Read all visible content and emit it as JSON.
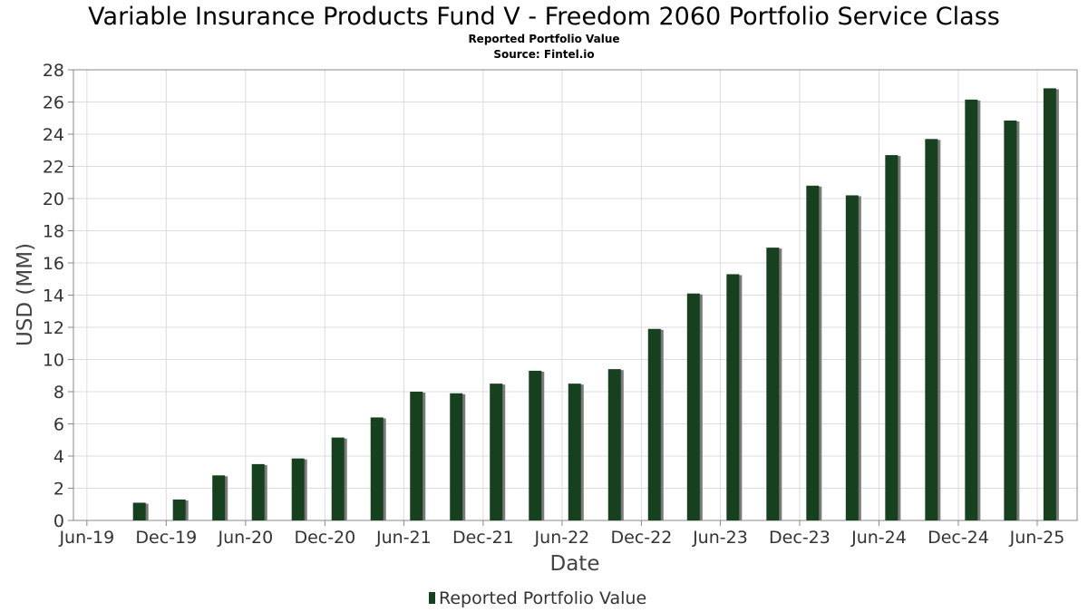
{
  "title": "Variable Insurance Products Fund V - Freedom 2060 Portfolio Service Class",
  "subtitle": "Reported Portfolio Value",
  "source": "Source: Fintel.io",
  "colors": {
    "bar": "#17401f",
    "bar_shadow": "#7a7a7a",
    "grid": "#dcdcdc",
    "plot_border": "#888888"
  },
  "chart_data": {
    "type": "bar",
    "title": "Variable Insurance Products Fund V - Freedom 2060 Portfolio Service Class",
    "subtitle": "Reported Portfolio Value",
    "xlabel": "Date",
    "ylabel": "USD (MM)",
    "ylim": [
      0,
      28
    ],
    "yticks": [
      0,
      2,
      4,
      6,
      8,
      10,
      12,
      14,
      16,
      18,
      20,
      22,
      24,
      26,
      28
    ],
    "xlim": [
      "2019-05-01",
      "2025-09-01"
    ],
    "xticks": [
      {
        "date": "2019-06-01",
        "label": "Jun-19"
      },
      {
        "date": "2019-12-01",
        "label": "Dec-19"
      },
      {
        "date": "2020-06-01",
        "label": "Jun-20"
      },
      {
        "date": "2020-12-01",
        "label": "Dec-20"
      },
      {
        "date": "2021-06-01",
        "label": "Jun-21"
      },
      {
        "date": "2021-12-01",
        "label": "Dec-21"
      },
      {
        "date": "2022-06-01",
        "label": "Jun-22"
      },
      {
        "date": "2022-12-01",
        "label": "Dec-22"
      },
      {
        "date": "2023-06-01",
        "label": "Jun-23"
      },
      {
        "date": "2023-12-01",
        "label": "Dec-23"
      },
      {
        "date": "2024-06-01",
        "label": "Jun-24"
      },
      {
        "date": "2024-12-01",
        "label": "Dec-24"
      },
      {
        "date": "2025-06-01",
        "label": "Jun-25"
      }
    ],
    "grid": true,
    "legend_position": "bottom-center",
    "series": [
      {
        "name": "Reported Portfolio Value",
        "points": [
          {
            "x": "2019-09-30",
            "y": 1.1
          },
          {
            "x": "2019-12-31",
            "y": 1.3
          },
          {
            "x": "2020-03-31",
            "y": 2.8
          },
          {
            "x": "2020-06-30",
            "y": 3.5
          },
          {
            "x": "2020-09-30",
            "y": 3.85
          },
          {
            "x": "2020-12-31",
            "y": 5.15
          },
          {
            "x": "2021-03-31",
            "y": 6.4
          },
          {
            "x": "2021-06-30",
            "y": 8.0
          },
          {
            "x": "2021-09-30",
            "y": 7.9
          },
          {
            "x": "2021-12-31",
            "y": 8.5
          },
          {
            "x": "2022-03-31",
            "y": 9.3
          },
          {
            "x": "2022-06-30",
            "y": 8.5
          },
          {
            "x": "2022-09-30",
            "y": 9.4
          },
          {
            "x": "2022-12-31",
            "y": 11.9
          },
          {
            "x": "2023-03-31",
            "y": 14.1
          },
          {
            "x": "2023-06-30",
            "y": 15.3
          },
          {
            "x": "2023-09-30",
            "y": 16.95
          },
          {
            "x": "2023-12-31",
            "y": 20.8
          },
          {
            "x": "2024-03-31",
            "y": 20.2
          },
          {
            "x": "2024-06-30",
            "y": 22.7
          },
          {
            "x": "2024-09-30",
            "y": 23.7
          },
          {
            "x": "2024-12-31",
            "y": 26.15
          },
          {
            "x": "2025-03-31",
            "y": 24.85
          },
          {
            "x": "2025-06-30",
            "y": 26.85
          }
        ]
      }
    ]
  }
}
